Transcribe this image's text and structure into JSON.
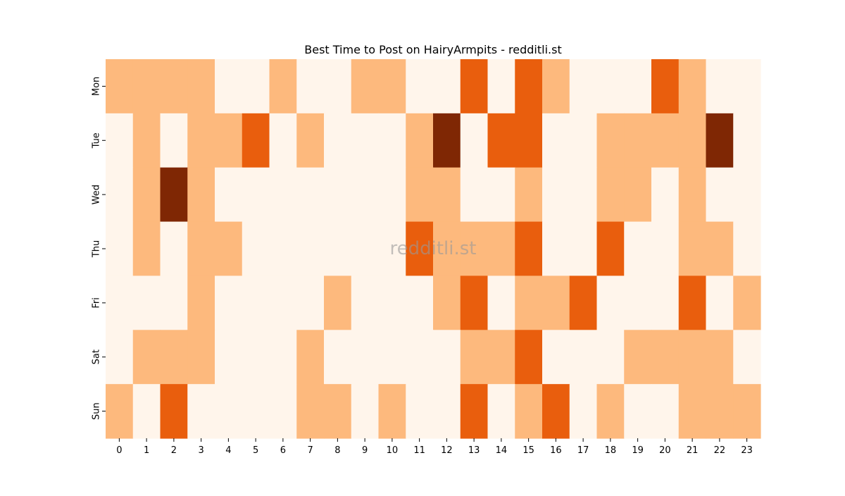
{
  "chart_data": {
    "type": "heatmap",
    "title": "Best Time to Post on HairyArmpits - redditli.st",
    "watermark": "redditli.st",
    "xlabel": "",
    "ylabel": "",
    "x_categories": [
      "0",
      "1",
      "2",
      "3",
      "4",
      "5",
      "6",
      "7",
      "8",
      "9",
      "10",
      "11",
      "12",
      "13",
      "14",
      "15",
      "16",
      "17",
      "18",
      "19",
      "20",
      "21",
      "22",
      "23"
    ],
    "y_categories": [
      "Mon",
      "Tue",
      "Wed",
      "Thu",
      "Fri",
      "Sat",
      "Sun"
    ],
    "values": [
      [
        1,
        1,
        1,
        1,
        0,
        0,
        1,
        0,
        0,
        1,
        1,
        0,
        0,
        2,
        0,
        2,
        1,
        0,
        0,
        0,
        2,
        1,
        0,
        0
      ],
      [
        0,
        1,
        0,
        1,
        1,
        2,
        0,
        1,
        0,
        0,
        0,
        1,
        3,
        0,
        2,
        2,
        0,
        0,
        1,
        1,
        1,
        1,
        3,
        0
      ],
      [
        0,
        1,
        3,
        1,
        0,
        0,
        0,
        0,
        0,
        0,
        0,
        1,
        1,
        0,
        0,
        1,
        0,
        0,
        1,
        1,
        0,
        1,
        0,
        0
      ],
      [
        0,
        1,
        0,
        1,
        1,
        0,
        0,
        0,
        0,
        0,
        0,
        2,
        1,
        1,
        1,
        2,
        0,
        0,
        2,
        0,
        0,
        1,
        1,
        0
      ],
      [
        0,
        0,
        0,
        1,
        0,
        0,
        0,
        0,
        1,
        0,
        0,
        0,
        1,
        2,
        0,
        1,
        1,
        2,
        0,
        0,
        0,
        2,
        0,
        1
      ],
      [
        0,
        1,
        1,
        1,
        0,
        0,
        0,
        1,
        0,
        0,
        0,
        0,
        0,
        1,
        1,
        2,
        0,
        0,
        0,
        1,
        1,
        1,
        1,
        0
      ],
      [
        1,
        0,
        2,
        0,
        0,
        0,
        0,
        1,
        1,
        0,
        1,
        0,
        0,
        2,
        0,
        1,
        2,
        0,
        1,
        0,
        0,
        1,
        1,
        1
      ]
    ],
    "colormap": {
      "0": "#fff5eb",
      "1": "#fdb97d",
      "2": "#e95e0d",
      "3": "#7f2704"
    },
    "colorbar": false,
    "grid": false
  }
}
